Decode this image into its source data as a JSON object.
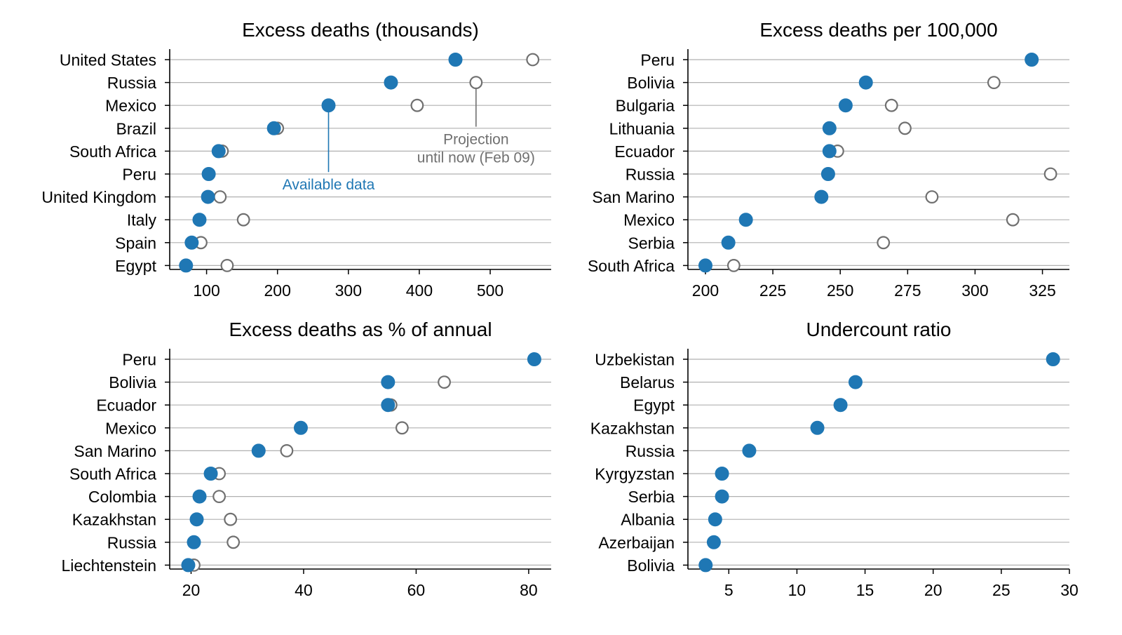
{
  "colors": {
    "available": "#1f77b4",
    "projection": "#707070",
    "grid": "#b0b0b0",
    "axis": "#000000"
  },
  "chart_data": [
    {
      "type": "scatter",
      "title": "Excess deaths (thousands)",
      "categories": [
        "United States",
        "Russia",
        "Mexico",
        "Brazil",
        "South Africa",
        "Peru",
        "United Kingdom",
        "Italy",
        "Spain",
        "Egypt"
      ],
      "series": [
        {
          "name": "Available data",
          "values": [
            451,
            360,
            272,
            195,
            117,
            103,
            102,
            90,
            79,
            71
          ]
        },
        {
          "name": "Projection until now (Feb 09)",
          "values": [
            560,
            480,
            397,
            200,
            122,
            null,
            119,
            152,
            92,
            129
          ]
        }
      ],
      "xlim": [
        48,
        586
      ],
      "xticks": [
        100,
        200,
        300,
        400,
        500
      ],
      "xticklabels": [
        "100",
        "200",
        "300",
        "400",
        "500"
      ],
      "grid": "horizontal",
      "annotations": [
        {
          "text": "Available data",
          "series": 0,
          "category": "Mexico",
          "x": 272,
          "label_lines": [
            "Available data"
          ]
        },
        {
          "text": "Projection until now (Feb 09)",
          "series": 1,
          "category": "Russia",
          "x": 480,
          "label_lines": [
            "Projection",
            "until now (Feb 09)"
          ]
        }
      ]
    },
    {
      "type": "scatter",
      "title": "Excess deaths per 100,000",
      "categories": [
        "Peru",
        "Bolivia",
        "Bulgaria",
        "Lithuania",
        "Ecuador",
        "Russia",
        "San Marino",
        "Mexico",
        "Serbia",
        "South Africa"
      ],
      "series": [
        {
          "name": "Available data",
          "values": [
            321,
            259.5,
            252,
            246,
            246,
            245.5,
            243,
            215,
            208.5,
            200
          ]
        },
        {
          "name": "Projection until now (Feb 09)",
          "values": [
            null,
            307,
            269,
            274,
            249,
            328,
            284,
            314,
            266,
            210.5
          ]
        }
      ],
      "xlim": [
        193.5,
        335
      ],
      "xticks": [
        200,
        225,
        250,
        275,
        300,
        325
      ],
      "xticklabels": [
        "200",
        "225",
        "250",
        "275",
        "300",
        "325"
      ],
      "grid": "horizontal"
    },
    {
      "type": "scatter",
      "title": "Excess deaths as % of annual",
      "categories": [
        "Peru",
        "Bolivia",
        "Ecuador",
        "Mexico",
        "San Marino",
        "South Africa",
        "Colombia",
        "Kazakhstan",
        "Russia",
        "Liechtenstein"
      ],
      "series": [
        {
          "name": "Available data",
          "values": [
            81,
            55,
            55,
            39.5,
            32,
            23.5,
            21.5,
            21,
            20.5,
            19.5
          ]
        },
        {
          "name": "Projection until now (Feb 09)",
          "values": [
            null,
            65,
            55.5,
            57.5,
            37,
            25,
            25,
            27,
            27.5,
            20.5
          ]
        }
      ],
      "xlim": [
        16.2,
        84
      ],
      "xticks": [
        20,
        40,
        60,
        80
      ],
      "xticklabels": [
        "20",
        "40",
        "60",
        "80"
      ],
      "grid": "horizontal"
    },
    {
      "type": "scatter",
      "title": "Undercount ratio",
      "categories": [
        "Uzbekistan",
        "Belarus",
        "Egypt",
        "Kazakhstan",
        "Russia",
        "Kyrgyzstan",
        "Serbia",
        "Albania",
        "Azerbaijan",
        "Bolivia"
      ],
      "series": [
        {
          "name": "Available data",
          "values": [
            28.8,
            14.3,
            13.2,
            11.5,
            6.5,
            4.5,
            4.5,
            4,
            3.9,
            3.3
          ]
        }
      ],
      "xlim": [
        2,
        30
      ],
      "xticks": [
        5,
        10,
        15,
        20,
        25,
        30
      ],
      "xticklabels": [
        "5",
        "10",
        "15",
        "20",
        "25",
        "30"
      ],
      "grid": "horizontal"
    }
  ]
}
